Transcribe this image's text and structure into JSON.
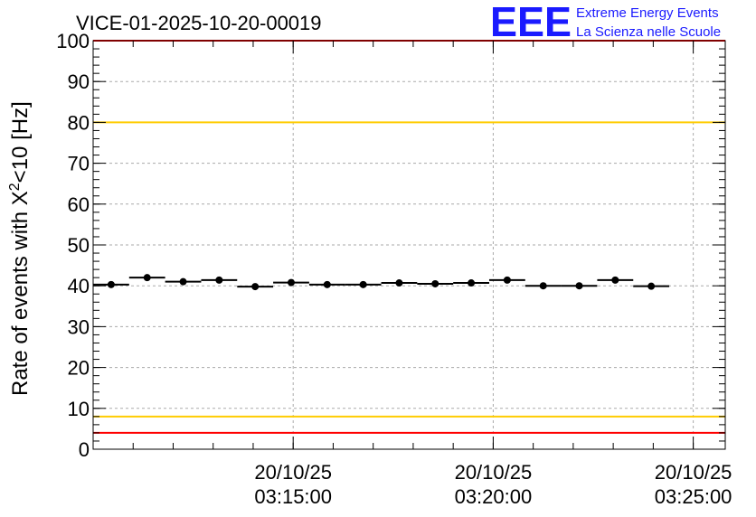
{
  "chart_data": {
    "type": "scatter",
    "title": "VICE-01-2025-10-20-00019",
    "ylabel_main": "Rate of events with X",
    "ylabel_sup": "2",
    "ylabel_tail": "<10 [Hz]",
    "ylim": [
      0,
      100
    ],
    "yticks": [
      "0",
      "10",
      "20",
      "30",
      "40",
      "50",
      "60",
      "70",
      "80",
      "90",
      "100"
    ],
    "x_unit": "minutes since 03:10:00",
    "xlim": [
      0,
      15.8
    ],
    "xticks": [
      {
        "t": 5,
        "date": "20/10/25",
        "time": "03:15:00"
      },
      {
        "t": 10,
        "date": "20/10/25",
        "time": "03:20:00"
      },
      {
        "t": 15,
        "date": "20/10/25",
        "time": "03:25:00"
      }
    ],
    "bin_width": 0.9,
    "points": [
      {
        "x": 0.45,
        "y": 40.3
      },
      {
        "x": 1.35,
        "y": 42.0
      },
      {
        "x": 2.25,
        "y": 41.0
      },
      {
        "x": 3.15,
        "y": 41.4
      },
      {
        "x": 4.05,
        "y": 39.8
      },
      {
        "x": 4.95,
        "y": 40.8
      },
      {
        "x": 5.85,
        "y": 40.3
      },
      {
        "x": 6.75,
        "y": 40.3
      },
      {
        "x": 7.65,
        "y": 40.7
      },
      {
        "x": 8.55,
        "y": 40.5
      },
      {
        "x": 9.45,
        "y": 40.7
      },
      {
        "x": 10.35,
        "y": 41.4
      },
      {
        "x": 11.25,
        "y": 40.0
      },
      {
        "x": 12.15,
        "y": 40.0
      },
      {
        "x": 13.05,
        "y": 41.4
      },
      {
        "x": 13.95,
        "y": 39.9
      }
    ],
    "reference_lines": [
      {
        "name": "upper-red-limit",
        "y": 100,
        "color": "#ff0000"
      },
      {
        "name": "upper-yellow-limit",
        "y": 80,
        "color": "#ffcc00"
      },
      {
        "name": "lower-yellow-limit",
        "y": 8,
        "color": "#ffcc00"
      },
      {
        "name": "lower-red-limit",
        "y": 4,
        "color": "#ff0000"
      }
    ],
    "grid": true
  },
  "logo": {
    "letters": "EEE",
    "line1": "Extreme Energy Events",
    "line2": "La Scienza nelle Scuole",
    "color": "#1a1aff"
  }
}
